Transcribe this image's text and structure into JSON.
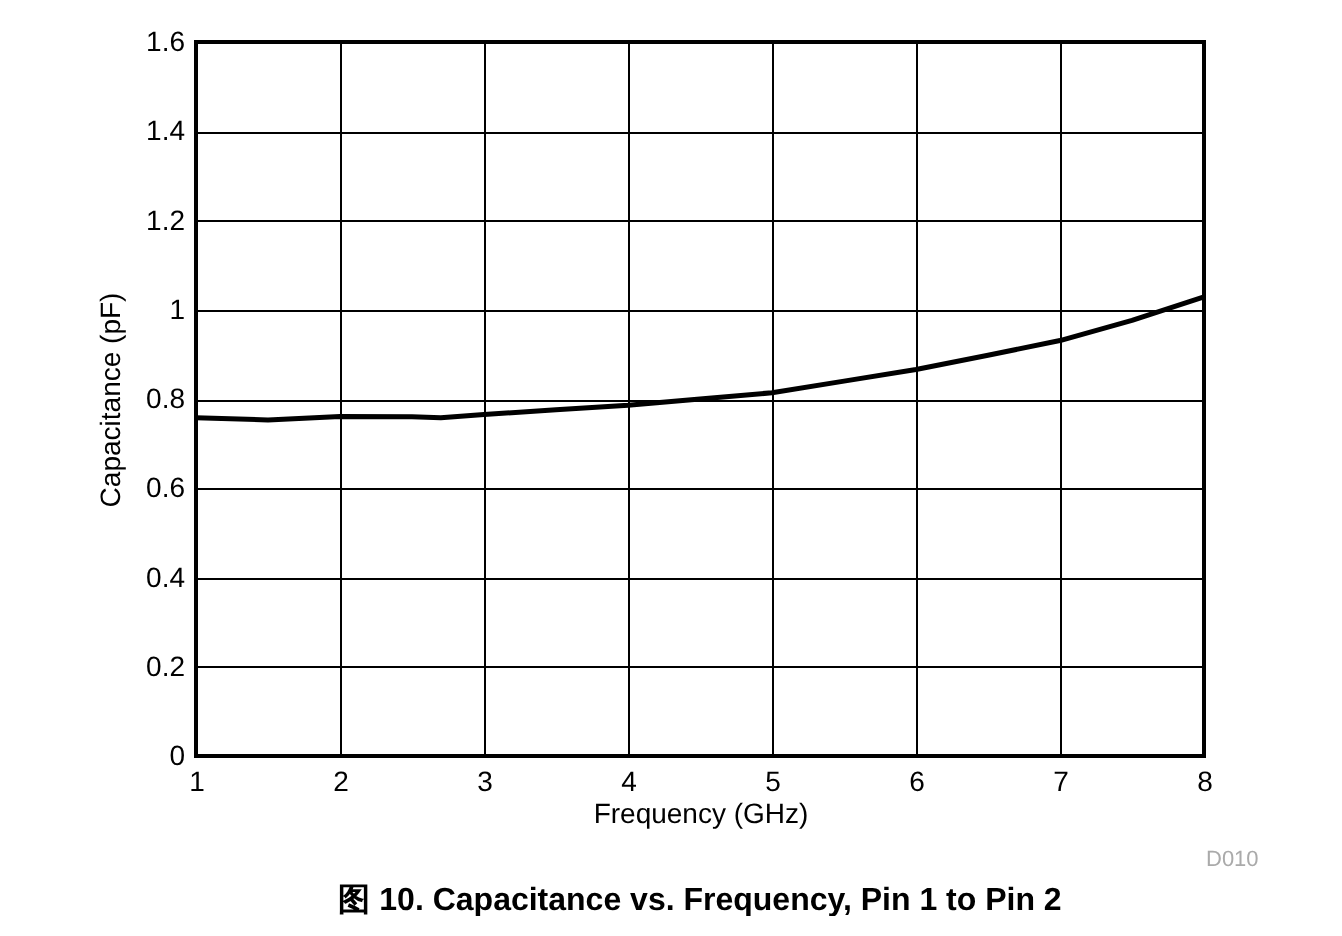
{
  "chart_data": {
    "type": "line",
    "title": "图 10. Capacitance vs. Frequency, Pin 1 to Pin 2",
    "xlabel": "Frequency (GHz)",
    "ylabel": "Capacitance (pF)",
    "annotations": [
      "D010"
    ],
    "x": [
      1,
      1.5,
      2,
      2.5,
      2.7,
      3,
      3.5,
      4,
      4.5,
      5,
      5.5,
      6,
      6.5,
      7,
      7.5,
      8
    ],
    "series": [
      {
        "color": "#000000",
        "values": [
          0.758,
          0.753,
          0.761,
          0.76,
          0.758,
          0.765,
          0.776,
          0.786,
          0.8,
          0.814,
          0.84,
          0.866,
          0.898,
          0.931,
          0.976,
          1.029
        ]
      }
    ],
    "xlim": [
      1,
      8
    ],
    "xticks": [
      1,
      2,
      3,
      4,
      5,
      6,
      7,
      8
    ],
    "ylim": [
      0,
      1.6
    ],
    "yticks": [
      0,
      0.2,
      0.4,
      0.6,
      0.8,
      1,
      1.2,
      1.4,
      1.6
    ],
    "grid": true
  }
}
